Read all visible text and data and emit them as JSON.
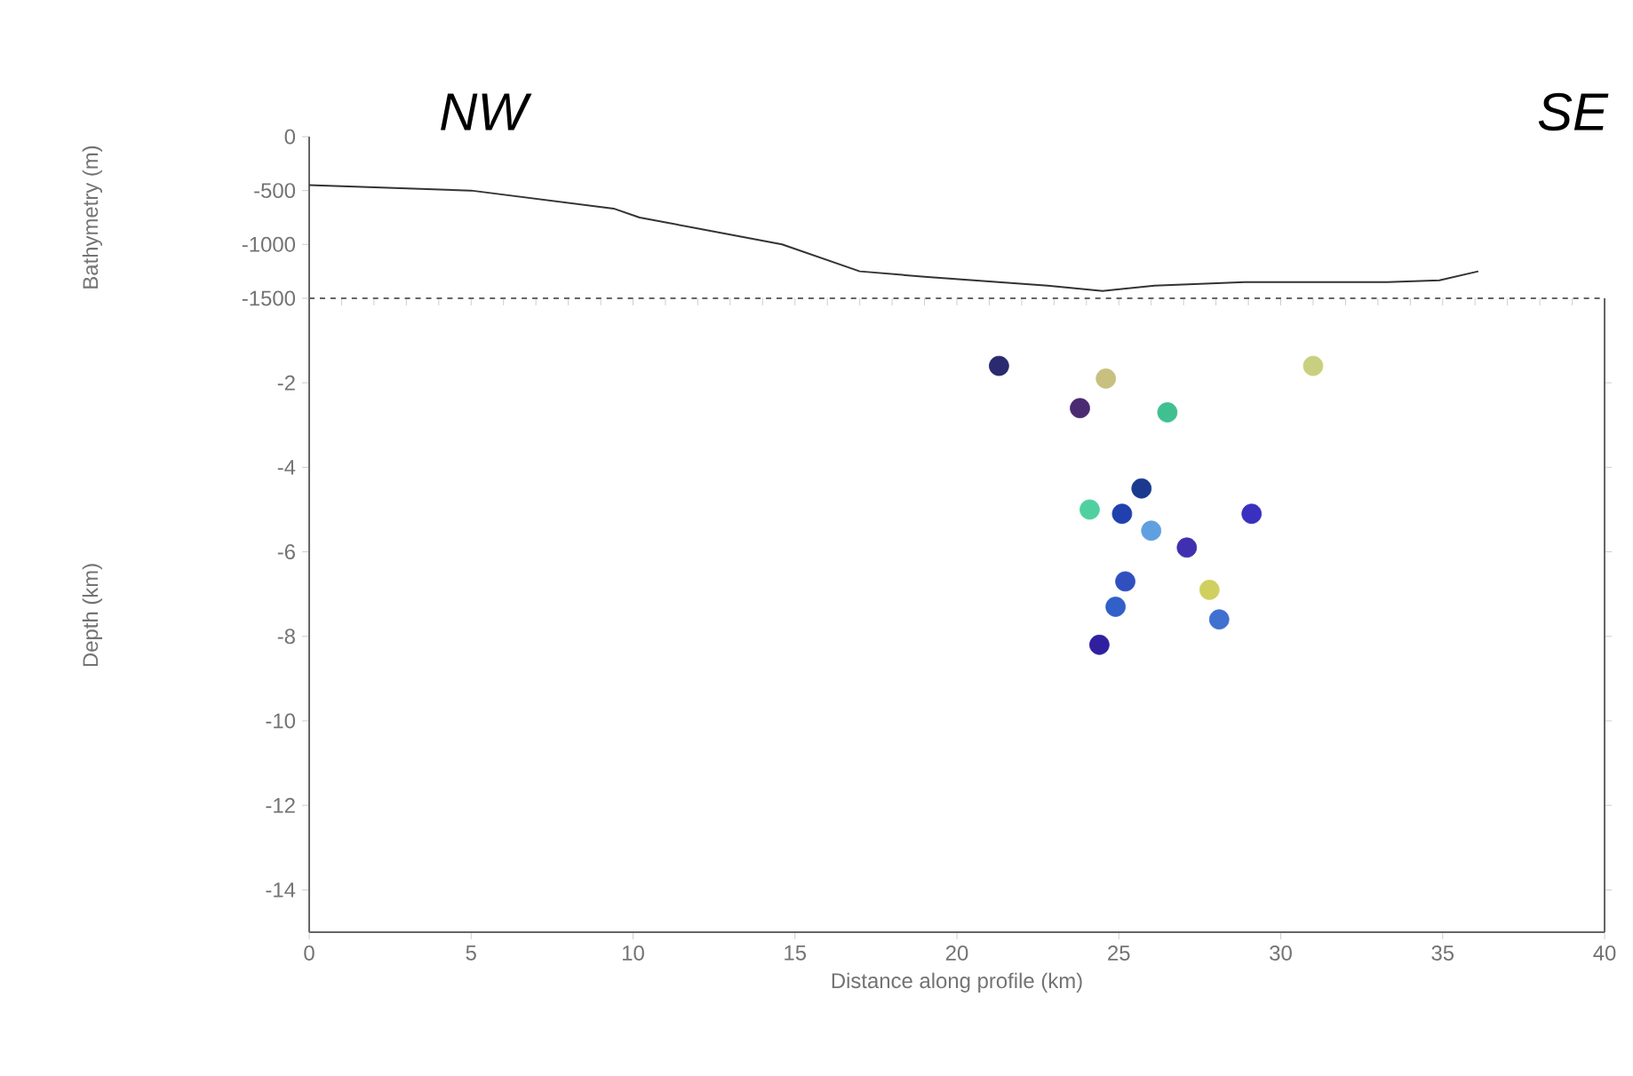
{
  "chart_data": [
    {
      "type": "line",
      "ylabel": "Bathymetry (m)",
      "color": "#333333",
      "x": [
        0,
        5,
        9.4,
        10.2,
        14.6,
        17,
        19,
        22.8,
        24.5,
        26.1,
        28.9,
        33.3,
        34.9,
        36.1
      ],
      "values": [
        -450,
        -500,
        -667,
        -750,
        -1000,
        -1250,
        -1300,
        -1383,
        -1433,
        -1383,
        -1350,
        -1350,
        -1333,
        -1250
      ],
      "xlim": [
        0,
        40
      ],
      "ylim": [
        -1500,
        0
      ],
      "yticks": [
        0,
        -500,
        -1000,
        -1500
      ],
      "tick_labels": "y",
      "marker": "none",
      "annotations": [
        "NW",
        "SE"
      ]
    },
    {
      "type": "scatter",
      "xlabel": "Distance along profile (km)",
      "ylabel": "Depth (km)",
      "marker": "circle",
      "x": [
        21.3,
        24.6,
        23.8,
        26.5,
        31.0,
        25.7,
        24.1,
        25.1,
        29.1,
        26.0,
        27.1,
        25.2,
        24.9,
        27.8,
        28.1,
        24.4
      ],
      "values": [
        -1.6,
        -1.9,
        -2.6,
        -2.7,
        -1.6,
        -4.5,
        -5.0,
        -5.1,
        -5.1,
        -5.5,
        -5.9,
        -6.7,
        -7.3,
        -6.9,
        -7.6,
        -8.2
      ],
      "colors": [
        "#2a2a6e",
        "#c8c080",
        "#4a2a70",
        "#40c090",
        "#c8d080",
        "#1a3a90",
        "#50d0a0",
        "#2040b0",
        "#3a30c0",
        "#60a0e0",
        "#4030b0",
        "#3050c0",
        "#3060c8",
        "#d0d060",
        "#4070d0",
        "#3020a0"
      ],
      "xlim": [
        0,
        40
      ],
      "xticks": [
        0,
        5,
        10,
        15,
        20,
        25,
        30,
        35,
        40
      ],
      "ylim": [
        -15,
        0
      ],
      "yticks": [
        -2,
        -4,
        -6,
        -8,
        -10,
        -12,
        -14
      ]
    }
  ]
}
